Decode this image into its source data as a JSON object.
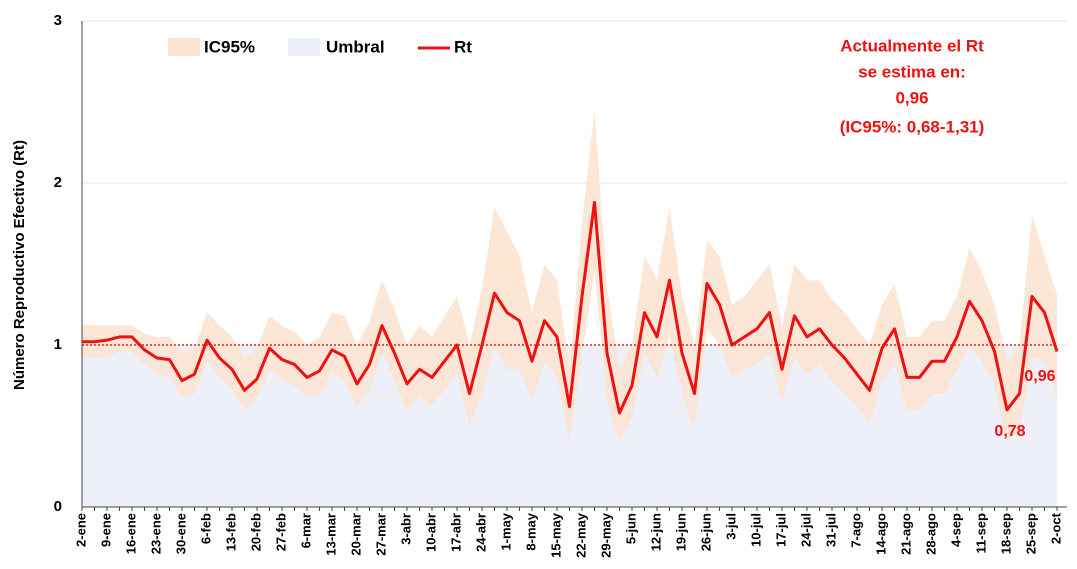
{
  "chart_data": {
    "type": "line",
    "y_label": "Número Reproductivo Efectivo (Rt)",
    "categories": [
      "2-ene",
      null,
      "9-ene",
      null,
      "16-ene",
      null,
      "23-ene",
      null,
      "30-ene",
      null,
      "6-feb",
      null,
      "13-feb",
      null,
      "20-feb",
      null,
      "27-feb",
      null,
      "6-mar",
      null,
      "13-mar",
      null,
      "20-mar",
      null,
      "27-mar",
      null,
      "3-abr",
      null,
      "10-abr",
      null,
      "17-abr",
      null,
      "24-abr",
      null,
      "1-may",
      null,
      "8-may",
      null,
      "15-may",
      null,
      "22-may",
      null,
      "29-may",
      null,
      "5-jun",
      null,
      "12-jun",
      null,
      "19-jun",
      null,
      "26-jun",
      null,
      "3-jul",
      null,
      "10-jul",
      null,
      "17-jul",
      null,
      "24-jul",
      null,
      "31-jul",
      null,
      "7-ago",
      null,
      "14-ago",
      null,
      "21-ago",
      null,
      "28-ago",
      null,
      "4-sep",
      null,
      "11-sep",
      null,
      "18-sep",
      null,
      "25-sep",
      null,
      "2-oct"
    ],
    "band": {
      "name": "IC95%",
      "color": "#fce3d0",
      "upper": [
        1.13,
        1.12,
        1.12,
        1.12,
        1.12,
        1.07,
        1.05,
        1.05,
        0.95,
        0.98,
        1.2,
        1.12,
        1.05,
        0.92,
        0.98,
        1.18,
        1.12,
        1.08,
        1.0,
        1.05,
        1.2,
        1.18,
        1.0,
        1.15,
        1.4,
        1.22,
        1.0,
        1.12,
        1.05,
        1.18,
        1.3,
        1.0,
        1.35,
        1.85,
        1.7,
        1.55,
        1.2,
        1.5,
        1.4,
        0.85,
        1.75,
        2.45,
        1.35,
        0.85,
        1.0,
        1.55,
        1.4,
        1.85,
        1.3,
        1.0,
        1.65,
        1.55,
        1.25,
        1.3,
        1.4,
        1.5,
        1.12,
        1.5,
        1.4,
        1.4,
        1.28,
        1.2,
        1.1,
        1.0,
        1.25,
        1.38,
        1.05,
        1.05,
        1.15,
        1.15,
        1.3,
        1.6,
        1.45,
        1.25,
        0.9,
        1.0,
        1.8,
        1.55,
        1.31
      ],
      "lower": [
        0.92,
        0.92,
        0.93,
        0.96,
        0.96,
        0.88,
        0.82,
        0.8,
        0.68,
        0.7,
        0.9,
        0.8,
        0.73,
        0.6,
        0.67,
        0.85,
        0.78,
        0.75,
        0.68,
        0.7,
        0.83,
        0.78,
        0.62,
        0.72,
        0.95,
        0.78,
        0.6,
        0.68,
        0.63,
        0.72,
        0.82,
        0.5,
        0.7,
        1.0,
        0.85,
        0.85,
        0.65,
        0.9,
        0.8,
        0.4,
        0.95,
        1.45,
        0.65,
        0.4,
        0.55,
        0.95,
        0.8,
        1.05,
        0.7,
        0.48,
        1.1,
        1.0,
        0.8,
        0.85,
        0.88,
        0.95,
        0.65,
        0.92,
        0.82,
        0.88,
        0.78,
        0.7,
        0.62,
        0.52,
        0.78,
        0.88,
        0.6,
        0.6,
        0.7,
        0.7,
        0.85,
        1.0,
        0.9,
        0.75,
        0.4,
        0.48,
        0.92,
        0.9,
        0.68
      ]
    },
    "threshold": {
      "name": "Umbral",
      "value": 1,
      "color": "#eef0f9",
      "line_color": "#e8201a"
    },
    "series": [
      {
        "name": "Rt",
        "color": "#ee1111",
        "values": [
          1.02,
          1.02,
          1.03,
          1.05,
          1.05,
          0.97,
          0.92,
          0.91,
          0.78,
          0.82,
          1.03,
          0.92,
          0.85,
          0.72,
          0.79,
          0.98,
          0.91,
          0.88,
          0.8,
          0.84,
          0.97,
          0.93,
          0.76,
          0.88,
          1.12,
          0.95,
          0.76,
          0.85,
          0.8,
          0.9,
          1.0,
          0.7,
          1.0,
          1.32,
          1.2,
          1.15,
          0.9,
          1.15,
          1.05,
          0.62,
          1.3,
          1.88,
          0.95,
          0.58,
          0.75,
          1.2,
          1.05,
          1.4,
          0.95,
          0.7,
          1.38,
          1.25,
          1.0,
          1.05,
          1.1,
          1.2,
          0.85,
          1.18,
          1.05,
          1.1,
          1.0,
          0.92,
          0.82,
          0.72,
          0.98,
          1.1,
          0.8,
          0.8,
          0.9,
          0.9,
          1.05,
          1.27,
          1.15,
          0.96,
          0.6,
          0.7,
          1.3,
          1.2,
          0.96
        ]
      }
    ],
    "ylim": [
      0,
      3
    ],
    "yticks": [
      0,
      1,
      2,
      3
    ],
    "grid": true,
    "annotations": [
      "Actualmente el Rt",
      "se estima en:",
      "0,96",
      "(IC95%: 0,68-1,31)",
      "0,78",
      "0,96"
    ]
  }
}
